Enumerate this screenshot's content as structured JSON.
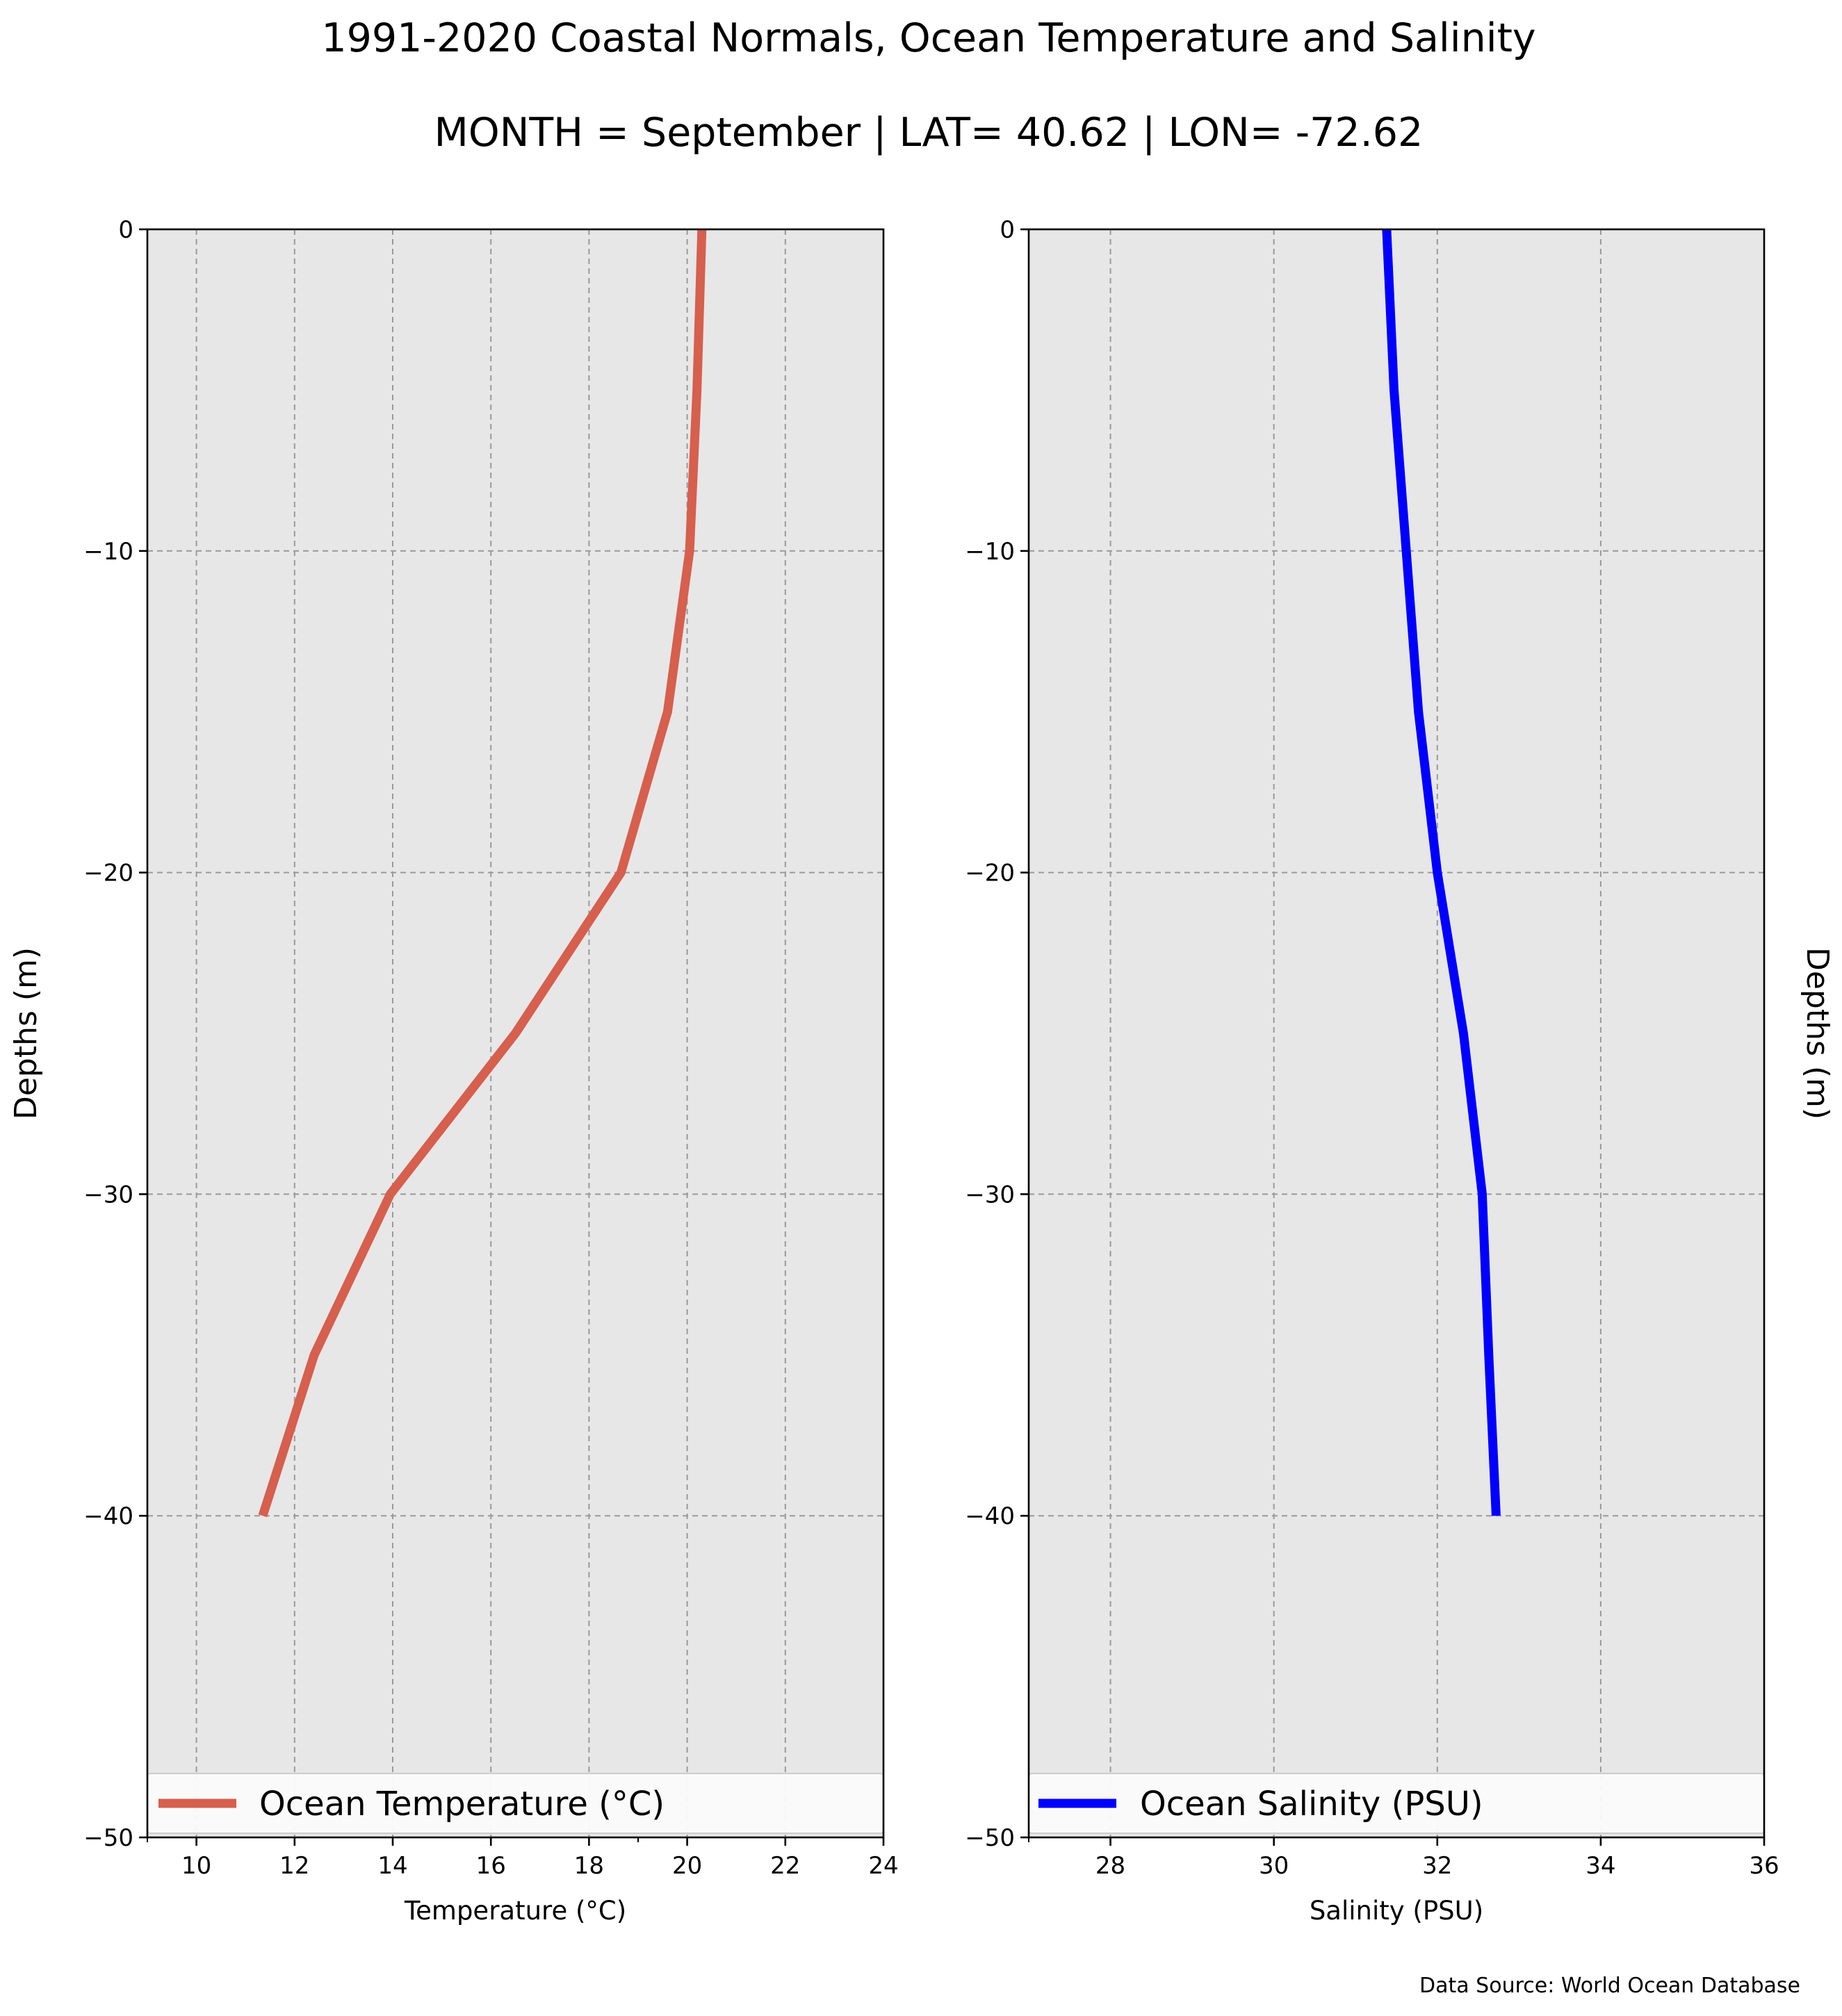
{
  "figure": {
    "title": "1991-2020 Coastal Normals, Ocean Temperature and Salinity",
    "subtitle": "MONTH = September | LAT= 40.62 | LON= -72.62",
    "source_note": "Data Source: World Ocean Database",
    "background": "#ffffff",
    "axes_background": "#e7e7e7"
  },
  "chart_data": [
    {
      "type": "line",
      "xlabel": "Temperature ($^\\circ$C)",
      "xlabel_text": "Temperature (°C)",
      "ylabel": "Depths (m)",
      "xlim": [
        9,
        24
      ],
      "ylim": [
        -50,
        0
      ],
      "xticks": [
        10,
        12,
        14,
        16,
        18,
        20,
        22,
        24
      ],
      "xtick_labels": [
        "10",
        "12",
        "14",
        "16",
        "18",
        "20",
        "22",
        "24"
      ],
      "yticks": [
        0,
        -10,
        -20,
        -30,
        -40,
        -50
      ],
      "ytick_labels": [
        "0",
        "−10",
        "−20",
        "−30",
        "−40",
        "−50"
      ],
      "grid": true,
      "legend_position": "lower center",
      "series": [
        {
          "name": "Ocean Temperature ($^\\circ$C)",
          "legend_label": "Ocean Temperature (°C)",
          "color": "#d65f4e",
          "x": [
            20.3,
            20.2,
            20.05,
            19.6,
            18.65,
            16.5,
            13.95,
            12.4,
            11.35
          ],
          "y": [
            0,
            -5,
            -10,
            -15,
            -20,
            -25,
            -30,
            -35,
            -40
          ]
        }
      ]
    },
    {
      "type": "line",
      "xlabel": "Salinity (PSU)",
      "ylabel": "Depths (m)",
      "xlim": [
        27,
        36
      ],
      "ylim": [
        -50,
        0
      ],
      "xticks": [
        28,
        30,
        32,
        34,
        36
      ],
      "xtick_labels": [
        "28",
        "30",
        "32",
        "34",
        "36"
      ],
      "yticks": [
        0,
        -10,
        -20,
        -30,
        -40,
        -50
      ],
      "ytick_labels": [
        "0",
        "−10",
        "−20",
        "−30",
        "−40",
        "−50"
      ],
      "grid": true,
      "legend_position": "lower center",
      "series": [
        {
          "name": "Ocean Salinity (PSU)",
          "color": "#0000ff",
          "x": [
            31.38,
            31.47,
            31.62,
            31.77,
            32.0,
            32.32,
            32.55,
            32.63,
            32.72
          ],
          "y": [
            0,
            -5,
            -10,
            -15,
            -20,
            -25,
            -30,
            -35,
            -40
          ]
        }
      ]
    }
  ]
}
